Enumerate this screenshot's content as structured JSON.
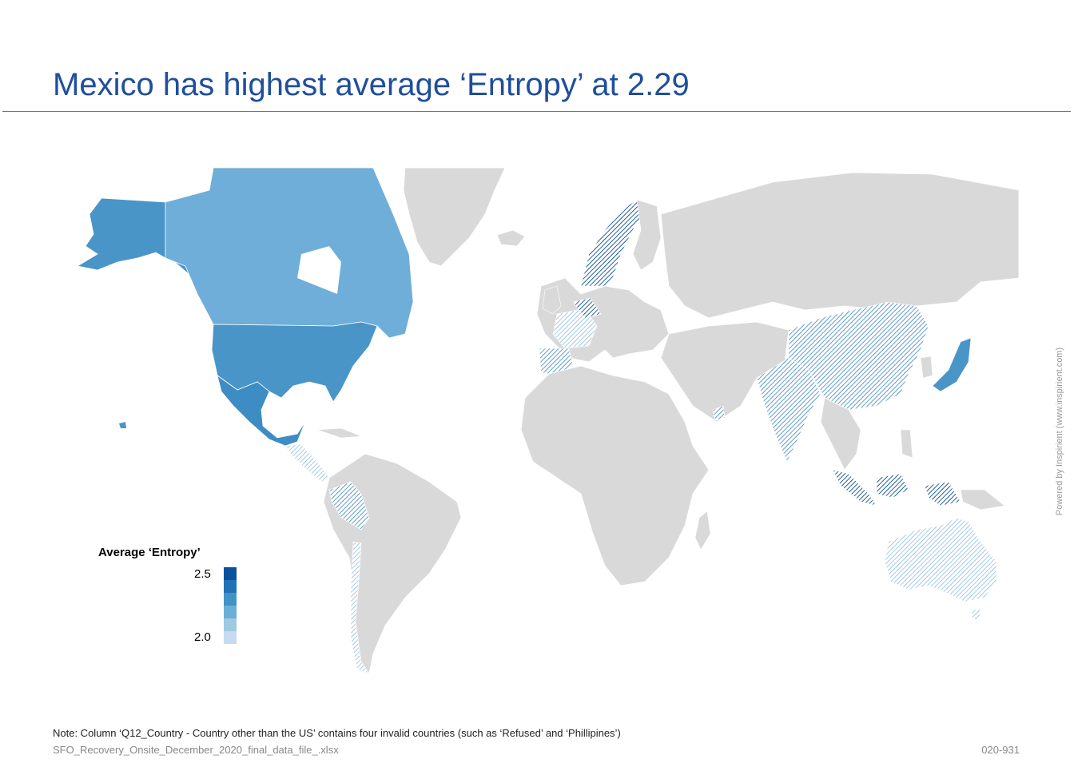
{
  "title": "Mexico has highest average ‘Entropy’ at 2.29",
  "map": {
    "background_land_color": "#d9d9d9",
    "border_color": "#ffffff",
    "hatched_fill": "pattern",
    "countries": [
      {
        "name": "United States",
        "color": "#4a95c8"
      },
      {
        "name": "Alaska",
        "color": "#4a95c8"
      },
      {
        "name": "Canada",
        "color": "#6eaed9"
      },
      {
        "name": "Mexico",
        "color": "#3d8cc4"
      }
    ]
  },
  "legend": {
    "title": "Average ‘Entropy’",
    "max_label": "2.5",
    "min_label": "2.0",
    "colors": [
      "#08519c",
      "#2171b5",
      "#4292c6",
      "#6baed6",
      "#9ecae1",
      "#c6dbef"
    ]
  },
  "note": "Note: Column ‘Q12_Country - Country other than the US’ contains four invalid countries (such as ‘Refused’ and ‘Phillipines’)",
  "source": "SFO_Recovery_Onsite_December_2020_final_data_file_.xlsx",
  "slide_number": "020-931",
  "powered_by": "Powered by Inspirient (www.inspirient.com)"
}
